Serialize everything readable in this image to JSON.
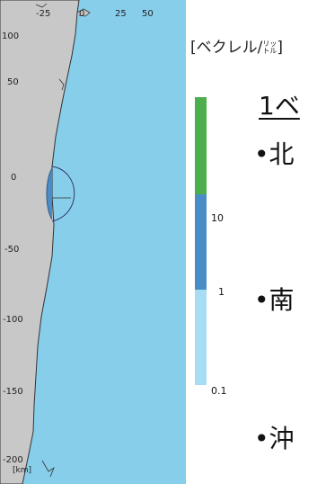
{
  "map": {
    "x_ticks": [
      "-25",
      "0",
      "25",
      "50"
    ],
    "y_ticks": [
      "100",
      "50",
      "0",
      "-50",
      "-100",
      "-150",
      "-200"
    ],
    "km_label": "[km]",
    "colors": {
      "sea": "#87ceeb",
      "land": "#c8c8c8",
      "coast": "#333333"
    }
  },
  "legend": {
    "unit_main": "[ベクレル/",
    "unit_small_top": "リッ",
    "unit_small_bottom": "トル",
    "unit_close": "]",
    "levels": [
      {
        "label": "10",
        "color": "#4cae4c"
      },
      {
        "label": "1",
        "color": "#4a8cc6"
      },
      {
        "label": "0.1",
        "color": "#a8dcf2"
      }
    ]
  },
  "side_text": {
    "heading": "1ベ",
    "bullets": [
      "•北",
      "•南",
      "•沖"
    ]
  }
}
